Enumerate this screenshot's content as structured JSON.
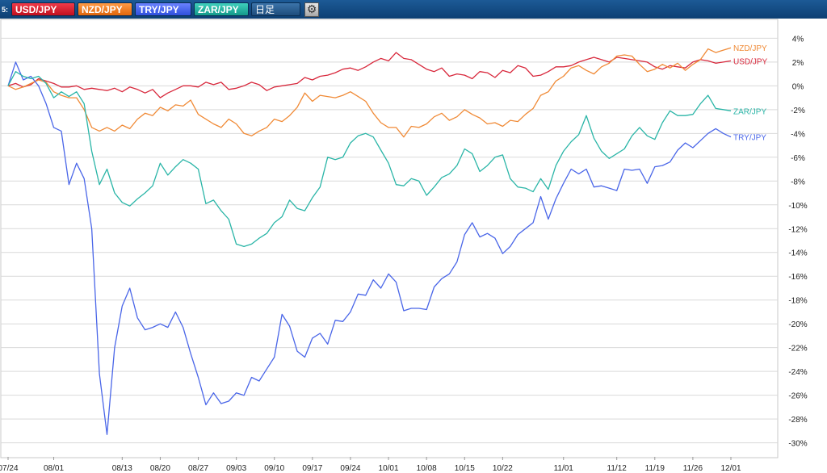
{
  "toolbar": {
    "prefix": "5:",
    "buttons": [
      {
        "label": "USD/JPY",
        "color": "#e02030"
      },
      {
        "label": "NZD/JPY",
        "color": "#f07a1e"
      },
      {
        "label": "TRY/JPY",
        "color": "#3f5fe8"
      },
      {
        "label": "ZAR/JPY",
        "color": "#1fb0a0"
      },
      {
        "label": "日足",
        "color": "#2c5f8f"
      }
    ],
    "gear_icon": "gear-icon"
  },
  "chart_data": {
    "type": "line",
    "x": [
      "07/24",
      "07/25",
      "07/26",
      "07/27",
      "07/28",
      "07/31",
      "08/01",
      "08/02",
      "08/03",
      "08/04",
      "08/07",
      "08/08",
      "08/09",
      "08/10",
      "08/11",
      "08/13",
      "08/14",
      "08/15",
      "08/16",
      "08/17",
      "08/20",
      "08/21",
      "08/22",
      "08/23",
      "08/24",
      "08/27",
      "08/28",
      "08/29",
      "08/30",
      "08/31",
      "09/03",
      "09/04",
      "09/05",
      "09/06",
      "09/07",
      "09/10",
      "09/11",
      "09/12",
      "09/13",
      "09/14",
      "09/17",
      "09/18",
      "09/19",
      "09/20",
      "09/21",
      "09/24",
      "09/25",
      "09/26",
      "09/27",
      "09/28",
      "10/01",
      "10/02",
      "10/03",
      "10/04",
      "10/05",
      "10/08",
      "10/09",
      "10/10",
      "10/11",
      "10/12",
      "10/15",
      "10/16",
      "10/17",
      "10/18",
      "10/19",
      "10/22",
      "10/23",
      "10/24",
      "10/25",
      "10/26",
      "10/29",
      "10/30",
      "10/31",
      "11/01",
      "11/02",
      "11/05",
      "11/06",
      "11/07",
      "11/08",
      "11/09",
      "11/12",
      "11/13",
      "11/14",
      "11/15",
      "11/16",
      "11/19",
      "11/20",
      "11/21",
      "11/22",
      "11/23",
      "11/26",
      "11/27",
      "11/28",
      "11/29",
      "11/30",
      "12/01"
    ],
    "x_ticks": [
      "07/24",
      "08/01",
      "08/13",
      "08/20",
      "08/27",
      "09/03",
      "09/10",
      "09/17",
      "09/24",
      "10/01",
      "10/08",
      "10/15",
      "10/22",
      "11/01",
      "11/12",
      "11/19",
      "11/26",
      "12/01"
    ],
    "ylim": [
      -30.5,
      4.5
    ],
    "y_ticks": [
      4,
      2,
      0,
      -2,
      -4,
      -6,
      -8,
      -10,
      -12,
      -14,
      -16,
      -18,
      -20,
      -22,
      -24,
      -26,
      -28,
      -30
    ],
    "y_tick_suffix": "%",
    "grid": true,
    "series": [
      {
        "name": "USD/JPY",
        "color": "#d8283c",
        "values": [
          0.0,
          0.2,
          -0.1,
          0.1,
          0.6,
          0.4,
          0.2,
          -0.1,
          -0.1,
          0.0,
          -0.3,
          -0.2,
          -0.3,
          -0.4,
          -0.2,
          -0.5,
          -0.1,
          -0.3,
          -0.6,
          -0.3,
          -1.0,
          -0.6,
          -0.3,
          0.0,
          0.0,
          -0.1,
          0.3,
          0.1,
          0.3,
          -0.3,
          -0.2,
          0.0,
          0.3,
          0.1,
          -0.4,
          -0.1,
          0.0,
          0.1,
          0.2,
          0.7,
          0.5,
          0.8,
          0.9,
          1.1,
          1.4,
          1.5,
          1.3,
          1.6,
          2.0,
          2.3,
          2.1,
          2.8,
          2.3,
          2.2,
          1.8,
          1.4,
          1.2,
          1.5,
          0.8,
          1.0,
          0.9,
          0.6,
          1.2,
          1.1,
          0.7,
          1.3,
          1.1,
          1.7,
          1.5,
          0.8,
          0.9,
          1.2,
          1.6,
          1.6,
          1.7,
          2.0,
          2.2,
          2.4,
          2.2,
          2.0,
          2.4,
          2.3,
          2.2,
          2.1,
          2.0,
          1.6,
          1.4,
          1.7,
          1.6,
          1.5,
          2.0,
          2.2,
          2.1,
          1.9,
          2.0,
          2.1
        ]
      },
      {
        "name": "NZD/JPY",
        "color": "#f08a36",
        "values": [
          0.0,
          -0.3,
          -0.1,
          0.2,
          0.5,
          0.3,
          -0.5,
          -0.8,
          -1.0,
          -1.0,
          -2.0,
          -3.5,
          -3.8,
          -3.5,
          -3.8,
          -3.3,
          -3.6,
          -2.8,
          -2.3,
          -2.5,
          -1.8,
          -2.1,
          -1.6,
          -1.7,
          -1.2,
          -2.4,
          -2.8,
          -3.2,
          -3.5,
          -2.8,
          -3.2,
          -4.0,
          -4.2,
          -3.8,
          -3.5,
          -2.8,
          -3.0,
          -2.5,
          -1.8,
          -0.6,
          -1.3,
          -0.8,
          -0.9,
          -1.0,
          -0.8,
          -0.5,
          -0.9,
          -1.3,
          -2.3,
          -3.1,
          -3.5,
          -3.5,
          -4.3,
          -3.4,
          -3.5,
          -3.2,
          -2.6,
          -2.3,
          -2.9,
          -2.6,
          -2.0,
          -2.4,
          -2.7,
          -3.2,
          -3.1,
          -3.4,
          -2.9,
          -3.0,
          -2.4,
          -1.9,
          -0.8,
          -0.5,
          0.4,
          0.8,
          1.5,
          1.7,
          1.3,
          1.0,
          1.6,
          1.9,
          2.5,
          2.6,
          2.5,
          1.8,
          1.2,
          1.4,
          1.8,
          1.5,
          1.9,
          1.3,
          1.8,
          2.2,
          3.1,
          2.8,
          3.0,
          3.2
        ]
      },
      {
        "name": "TRY/JPY",
        "color": "#4a66e8",
        "values": [
          0.0,
          2.0,
          0.5,
          0.8,
          0.0,
          -1.5,
          -3.5,
          -3.8,
          -8.3,
          -6.5,
          -7.8,
          -12.0,
          -24.2,
          -29.3,
          -22.0,
          -18.5,
          -17.0,
          -19.5,
          -20.5,
          -20.3,
          -20.0,
          -20.3,
          -19.0,
          -20.3,
          -22.5,
          -24.5,
          -26.8,
          -25.8,
          -26.7,
          -26.5,
          -25.8,
          -26.0,
          -24.5,
          -24.8,
          -23.8,
          -22.8,
          -19.2,
          -20.2,
          -22.3,
          -22.8,
          -21.2,
          -20.8,
          -21.7,
          -19.7,
          -19.8,
          -19.0,
          -17.5,
          -17.6,
          -16.3,
          -17.0,
          -15.8,
          -16.5,
          -18.9,
          -18.7,
          -18.7,
          -18.8,
          -16.9,
          -16.2,
          -15.8,
          -14.8,
          -12.5,
          -11.5,
          -12.7,
          -12.4,
          -12.8,
          -14.1,
          -13.5,
          -12.5,
          -12.0,
          -11.5,
          -9.3,
          -11.2,
          -9.5,
          -8.2,
          -7.0,
          -7.4,
          -7.0,
          -8.5,
          -8.4,
          -8.6,
          -8.8,
          -7.0,
          -7.1,
          -7.0,
          -8.2,
          -6.8,
          -6.7,
          -6.4,
          -5.4,
          -4.8,
          -5.2,
          -4.6,
          -4.0,
          -3.6,
          -4.0,
          -4.3
        ]
      },
      {
        "name": "ZAR/JPY",
        "color": "#2ab5a7",
        "values": [
          0.0,
          1.2,
          0.8,
          0.6,
          0.8,
          0.2,
          -1.0,
          -0.5,
          -0.9,
          -0.5,
          -1.5,
          -5.5,
          -8.3,
          -7.0,
          -9.0,
          -9.8,
          -10.1,
          -9.5,
          -9.0,
          -8.4,
          -6.5,
          -7.5,
          -6.8,
          -6.2,
          -6.5,
          -7.0,
          -9.9,
          -9.6,
          -10.5,
          -11.2,
          -13.3,
          -13.5,
          -13.3,
          -12.8,
          -12.4,
          -11.5,
          -11.0,
          -9.6,
          -10.3,
          -10.5,
          -9.4,
          -8.5,
          -6.0,
          -6.2,
          -6.0,
          -4.8,
          -4.2,
          -4.0,
          -4.3,
          -5.4,
          -6.5,
          -8.3,
          -8.4,
          -7.8,
          -8.0,
          -9.2,
          -8.5,
          -7.7,
          -7.4,
          -6.7,
          -5.3,
          -5.7,
          -7.2,
          -6.7,
          -6.0,
          -5.8,
          -7.8,
          -8.5,
          -8.6,
          -8.9,
          -7.8,
          -8.7,
          -6.7,
          -5.5,
          -4.7,
          -4.1,
          -2.5,
          -4.4,
          -5.5,
          -6.1,
          -5.7,
          -5.3,
          -4.2,
          -3.5,
          -4.2,
          -4.5,
          -3.1,
          -2.1,
          -2.5,
          -2.5,
          -2.4,
          -1.5,
          -0.8,
          -1.9,
          -2.0,
          -2.1
        ]
      }
    ]
  }
}
